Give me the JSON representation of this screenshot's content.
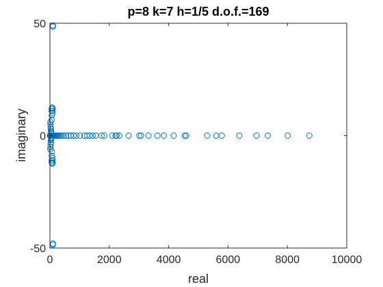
{
  "chart_data": {
    "type": "scatter",
    "title": "p=8 k=7 h=1/5 d.o.f.=169",
    "xlabel": "real",
    "ylabel": "imaginary",
    "xlim": [
      0,
      10000
    ],
    "ylim": [
      -50,
      50
    ],
    "xticks": [
      0,
      2000,
      4000,
      6000,
      8000,
      10000
    ],
    "xtick_labels": [
      "0",
      "2000",
      "4000",
      "6000",
      "8000",
      "10000"
    ],
    "yticks": [
      -50,
      0,
      50
    ],
    "ytick_labels": [
      "-50",
      "0",
      "50"
    ],
    "grid": false,
    "legend": "none",
    "marker": "open-circle",
    "series_color": "#0072BD",
    "series": [
      {
        "x": [
          8740,
          8010,
          7340,
          6960,
          6380,
          5790,
          5600,
          5300,
          4590,
          4540,
          4170,
          3840,
          3620,
          3320,
          3070,
          3010,
          2650,
          2340,
          2250,
          2210,
          2100,
          1830,
          1740,
          1550,
          1440,
          1340,
          1250,
          1160,
          1010,
          890,
          800,
          700,
          620,
          540,
          460,
          400,
          340,
          300,
          260,
          230,
          200,
          170,
          150,
          130,
          110,
          100,
          90,
          80,
          70,
          60,
          50,
          45,
          40,
          35,
          30,
          25,
          20,
          15,
          10,
          8,
          6,
          5,
          4,
          3,
          2,
          1,
          40,
          35,
          30,
          25,
          20,
          15,
          40,
          35,
          30,
          25,
          20,
          15,
          60,
          60,
          60,
          60,
          60,
          60,
          60,
          60,
          100,
          100,
          100,
          100,
          90,
          90,
          90,
          90,
          80,
          80,
          80,
          80,
          40,
          40
        ],
        "y": [
          0,
          0,
          0,
          0,
          0,
          0,
          0,
          0,
          0,
          0,
          0,
          0,
          0,
          0,
          0,
          0,
          0,
          0,
          0,
          0,
          0,
          0,
          0,
          0,
          0,
          0,
          0,
          0,
          0,
          0,
          0,
          0,
          0,
          0,
          0,
          0,
          0,
          0,
          0,
          0,
          0,
          0,
          0,
          0,
          0,
          0,
          0,
          0,
          0,
          0,
          0,
          0,
          0,
          0,
          0,
          0,
          0,
          0,
          0,
          0,
          0,
          0,
          0,
          0,
          0,
          0,
          1,
          2,
          3,
          4,
          5,
          6,
          -1,
          -2,
          -3,
          -4,
          -5,
          -6,
          7,
          9,
          11,
          12,
          -7,
          -9,
          -11,
          -12,
          49,
          48.5,
          -48,
          -48.5,
          12,
          10,
          -12,
          -10,
          12.5,
          11,
          -12.5,
          -11,
          1.5,
          -1.5
        ]
      }
    ]
  }
}
